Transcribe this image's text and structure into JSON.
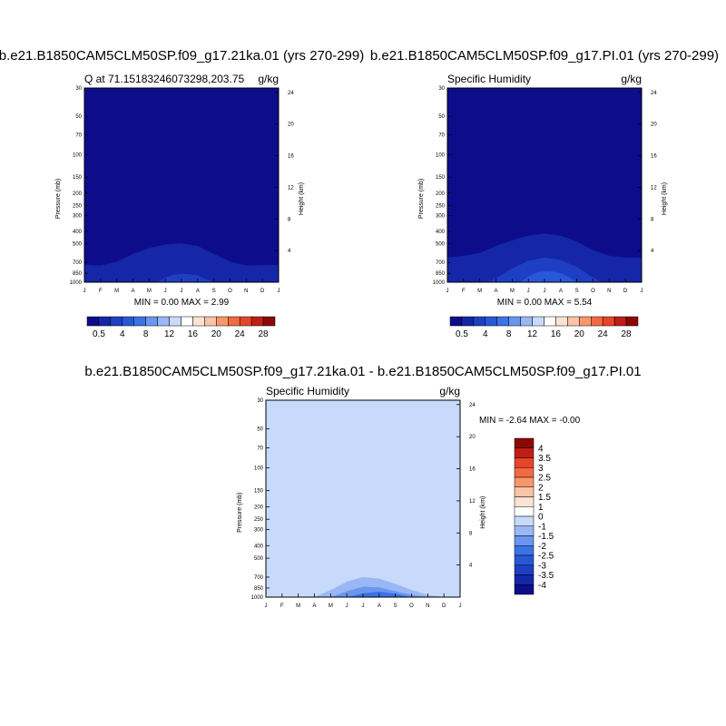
{
  "figure": {
    "panels": [
      {
        "title": "b.e21.B1850CAM5CLM50SP.f09_g17.21ka.01 (yrs 270-299)",
        "left_label": "Q at 71.15183246073298,203.75",
        "right_label": "g/kg",
        "minmax_text": "MIN =   0.00 MAX =   2.99"
      },
      {
        "title": "b.e21.B1850CAM5CLM50SP.f09_g17.PI.01 (yrs 270-299)",
        "left_label": "Specific Humidity",
        "right_label": "g/kg",
        "minmax_text": "MIN =   0.00 MAX =   5.54"
      },
      {
        "title": "b.e21.B1850CAM5CLM50SP.f09_g17.21ka.01 - b.e21.B1850CAM5CLM50SP.f09_g17.PI.01",
        "left_label": "Specific Humidity",
        "right_label": "g/kg",
        "minmax_text": "MIN =  -2.64 MAX =  -0.00"
      }
    ],
    "abs_colorbar": {
      "labels": [
        "0.5",
        "4",
        "8",
        "12",
        "16",
        "20",
        "24",
        "28"
      ],
      "colors": [
        "#0d0d8c",
        "#1526a8",
        "#1e3fc4",
        "#2858d8",
        "#3b73e6",
        "#6a96ef",
        "#9ab7f5",
        "#c8dafb",
        "#ffffff",
        "#fde3d4",
        "#fbc3a7",
        "#f7976c",
        "#f26a40",
        "#e8442a",
        "#c01d18",
        "#8c0606"
      ]
    },
    "diff_colorbar": {
      "labels": [
        "4",
        "3.5",
        "3",
        "2.5",
        "2",
        "1.5",
        "1",
        "0",
        "-1",
        "-1.5",
        "-2",
        "-2.5",
        "-3",
        "-3.5",
        "-4"
      ],
      "colors": [
        "#8c0606",
        "#c01d18",
        "#e8442a",
        "#f26a40",
        "#f7976c",
        "#fbc3a7",
        "#fde3d4",
        "#ffffff",
        "#c8dafb",
        "#9ab7f5",
        "#6a96ef",
        "#3b73e6",
        "#2858d8",
        "#1e3fc4",
        "#1526a8",
        "#0d0d8c"
      ]
    }
  },
  "chart_data": [
    {
      "type": "heatmap",
      "title": "b.e21.B1850CAM5CLM50SP.f09_g17.21ka.01 (yrs 270-299)",
      "variable": "Q at 71.15183246073298,203.75",
      "units": "g/kg",
      "x_ticks": [
        "J",
        "F",
        "M",
        "A",
        "M",
        "J",
        "J",
        "A",
        "S",
        "O",
        "N",
        "D",
        "J"
      ],
      "xlabel": "",
      "ylabel": "Pressure (mb)",
      "y_ticks": [
        30,
        50,
        70,
        100,
        150,
        200,
        250,
        300,
        400,
        500,
        700,
        850,
        1000
      ],
      "ylim": [
        1000,
        30
      ],
      "y_scale": "log",
      "y2label": "Height (km)",
      "y2_ticks": [
        4,
        8,
        12,
        16,
        20,
        24
      ],
      "min": 0.0,
      "max": 2.99,
      "colors": [
        "#0d0d8c",
        "#1526a8",
        "#1e3fc4"
      ],
      "fill_bands": [
        {
          "color": "#1526a8",
          "x": [
            0,
            1,
            2,
            3,
            4,
            5,
            6,
            7,
            8,
            9,
            10,
            11,
            12
          ],
          "top_pressure": [
            730,
            740,
            690,
            600,
            540,
            505,
            495,
            520,
            600,
            690,
            740,
            735,
            730
          ]
        },
        {
          "color": "#1e3fc4",
          "x": [
            4.5,
            5,
            5.5,
            6,
            6.5,
            7,
            7.5,
            8
          ],
          "top_pressure": [
            1000,
            920,
            875,
            860,
            865,
            885,
            945,
            1000
          ]
        }
      ]
    },
    {
      "type": "heatmap",
      "title": "b.e21.B1850CAM5CLM50SP.f09_g17.PI.01 (yrs 270-299)",
      "variable": "Specific Humidity",
      "units": "g/kg",
      "x_ticks": [
        "J",
        "F",
        "M",
        "A",
        "M",
        "J",
        "J",
        "A",
        "S",
        "O",
        "N",
        "D",
        "J"
      ],
      "xlabel": "",
      "ylabel": "Pressure (mb)",
      "y_ticks": [
        30,
        50,
        70,
        100,
        150,
        200,
        250,
        300,
        400,
        500,
        700,
        850,
        1000
      ],
      "ylim": [
        1000,
        30
      ],
      "y_scale": "log",
      "y2label": "Height (km)",
      "y2_ticks": [
        4,
        8,
        12,
        16,
        20,
        24
      ],
      "min": 0.0,
      "max": 5.54,
      "colors": [
        "#0d0d8c",
        "#1526a8",
        "#1e3fc4",
        "#2858d8"
      ],
      "fill_bands": [
        {
          "color": "#1526a8",
          "x": [
            0,
            1,
            2,
            3,
            4,
            5,
            6,
            7,
            8,
            9,
            10,
            11,
            12
          ],
          "top_pressure": [
            640,
            620,
            590,
            520,
            470,
            430,
            415,
            430,
            480,
            560,
            620,
            640,
            640
          ]
        },
        {
          "color": "#1e3fc4",
          "x": [
            2.5,
            3,
            4,
            5,
            6,
            7,
            8,
            9,
            9.5
          ],
          "top_pressure": [
            1000,
            930,
            780,
            680,
            640,
            670,
            760,
            920,
            1000
          ]
        },
        {
          "color": "#2858d8",
          "x": [
            4.5,
            5,
            5.5,
            6,
            6.5,
            7,
            7.5,
            8
          ],
          "top_pressure": [
            1000,
            900,
            840,
            820,
            825,
            850,
            910,
            1000
          ]
        }
      ]
    },
    {
      "type": "heatmap",
      "title": "b.e21.B1850CAM5CLM50SP.f09_g17.21ka.01 - b.e21.B1850CAM5CLM50SP.f09_g17.PI.01",
      "variable": "Specific Humidity",
      "units": "g/kg",
      "x_ticks": [
        "J",
        "F",
        "M",
        "A",
        "M",
        "J",
        "J",
        "A",
        "S",
        "O",
        "N",
        "D",
        "J"
      ],
      "xlabel": "",
      "ylabel": "Pressure (mb)",
      "y_ticks": [
        30,
        50,
        70,
        100,
        150,
        200,
        250,
        300,
        400,
        500,
        700,
        850,
        1000
      ],
      "ylim": [
        1000,
        30
      ],
      "y_scale": "log",
      "y2label": "Height (km)",
      "y2_ticks": [
        4,
        8,
        12,
        16,
        20,
        24
      ],
      "min": -2.64,
      "max": -0.0,
      "colors": [
        "#c8dafb",
        "#9ab7f5",
        "#6a96ef",
        "#3b73e6"
      ],
      "fill_bands": [
        {
          "color": "#9ab7f5",
          "x": [
            3,
            4,
            5,
            6,
            7,
            8,
            9,
            10,
            11
          ],
          "top_pressure": [
            1000,
            880,
            760,
            700,
            720,
            790,
            880,
            960,
            1000
          ]
        },
        {
          "color": "#6a96ef",
          "x": [
            4,
            5,
            6,
            7,
            8,
            9,
            10
          ],
          "top_pressure": [
            1000,
            900,
            830,
            840,
            900,
            960,
            1000
          ]
        },
        {
          "color": "#3b73e6",
          "x": [
            5,
            6,
            7,
            8,
            9
          ],
          "top_pressure": [
            1000,
            935,
            905,
            940,
            1000
          ]
        }
      ]
    }
  ]
}
